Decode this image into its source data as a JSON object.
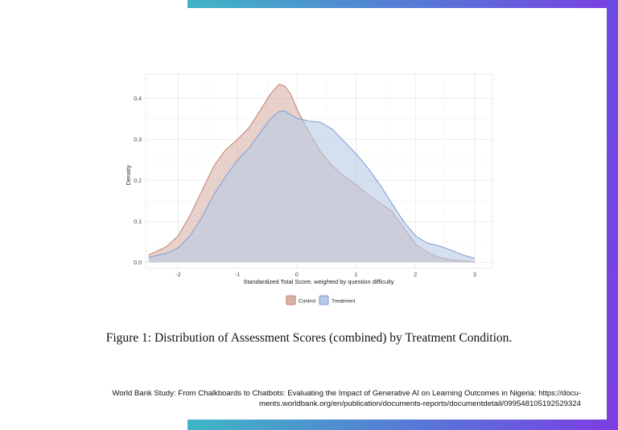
{
  "chart_data": {
    "type": "area",
    "title": "",
    "xlabel": "Standardized Total Score, weighted by question difficulty",
    "ylabel": "Density",
    "xlim": [
      -2.55,
      3.3
    ],
    "ylim": [
      -0.015,
      0.46
    ],
    "x_ticks": [
      -2,
      -1,
      0,
      1,
      2,
      3
    ],
    "y_ticks": [
      0.0,
      0.1,
      0.2,
      0.3,
      0.4
    ],
    "y_tick_labels": [
      "0.0",
      "0.1",
      "0.2",
      "0.3",
      "0.4"
    ],
    "grid": true,
    "legend_position": "bottom",
    "series": [
      {
        "name": "Control",
        "color": "#d9b3a6",
        "stroke": "#c4806b",
        "x": [
          -2.5,
          -2.2,
          -2.0,
          -1.8,
          -1.6,
          -1.4,
          -1.2,
          -1.0,
          -0.8,
          -0.6,
          -0.45,
          -0.3,
          -0.2,
          -0.1,
          0.0,
          0.2,
          0.4,
          0.6,
          0.8,
          1.0,
          1.2,
          1.4,
          1.6,
          1.8,
          2.0,
          2.2,
          2.4,
          2.6,
          2.8,
          3.0
        ],
        "y": [
          0.018,
          0.038,
          0.065,
          0.115,
          0.175,
          0.235,
          0.275,
          0.3,
          0.33,
          0.375,
          0.41,
          0.435,
          0.43,
          0.41,
          0.375,
          0.32,
          0.27,
          0.235,
          0.21,
          0.19,
          0.165,
          0.145,
          0.125,
          0.085,
          0.045,
          0.025,
          0.012,
          0.006,
          0.003,
          0.001
        ]
      },
      {
        "name": "Treatment",
        "color": "#b8cae6",
        "stroke": "#7e9dd0",
        "x": [
          -2.5,
          -2.2,
          -2.0,
          -1.8,
          -1.6,
          -1.4,
          -1.2,
          -1.0,
          -0.8,
          -0.6,
          -0.45,
          -0.3,
          -0.2,
          -0.1,
          0.0,
          0.2,
          0.4,
          0.6,
          0.8,
          1.0,
          1.2,
          1.4,
          1.6,
          1.8,
          2.0,
          2.2,
          2.4,
          2.6,
          2.8,
          3.0
        ],
        "y": [
          0.012,
          0.022,
          0.035,
          0.065,
          0.11,
          0.165,
          0.21,
          0.25,
          0.28,
          0.32,
          0.35,
          0.368,
          0.37,
          0.36,
          0.352,
          0.345,
          0.342,
          0.325,
          0.295,
          0.265,
          0.23,
          0.19,
          0.145,
          0.1,
          0.065,
          0.047,
          0.04,
          0.03,
          0.018,
          0.01
        ]
      }
    ]
  },
  "caption": "Figure 1: Distribution of Assessment Scores (combined) by Treatment Condition.",
  "source": {
    "line1": "World Bank Study: From Chalkboards to Chatbots: Evaluating the Impact of Generative AI on Learning Outcomes in Nigeria: https://docu-",
    "line2": "ments.worldbank.org/en/publication/documents-reports/documentdetail/099548105192529324"
  }
}
